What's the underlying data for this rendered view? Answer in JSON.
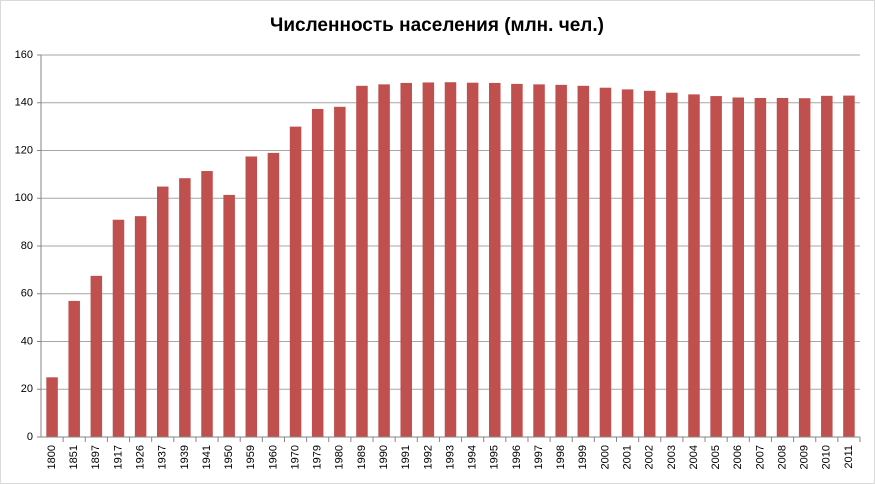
{
  "chart_data": {
    "type": "bar",
    "title": "Численность населения (млн. чел.)",
    "categories": [
      "1800",
      "1851",
      "1897",
      "1917",
      "1926",
      "1937",
      "1939",
      "1941",
      "1950",
      "1959",
      "1960",
      "1970",
      "1979",
      "1980",
      "1989",
      "1990",
      "1991",
      "1992",
      "1993",
      "1994",
      "1995",
      "1996",
      "1997",
      "1998",
      "1999",
      "2000",
      "2001",
      "2002",
      "2003",
      "2004",
      "2005",
      "2006",
      "2007",
      "2008",
      "2009",
      "2010",
      "2011"
    ],
    "values": [
      25,
      57,
      67.5,
      91,
      92.5,
      104.9,
      108.4,
      111.4,
      101.4,
      117.5,
      119,
      130,
      137.4,
      138.3,
      147.1,
      147.7,
      148.3,
      148.5,
      148.6,
      148.4,
      148.3,
      147.9,
      147.7,
      147.5,
      147.1,
      146.3,
      145.6,
      145,
      144.2,
      143.5,
      142.8,
      142.2,
      142,
      142,
      141.9,
      142.9,
      143
    ],
    "color": "#c0504d",
    "ylim": [
      0,
      160
    ],
    "yticks": [
      0,
      20,
      40,
      60,
      80,
      100,
      120,
      140,
      160
    ],
    "grid": true
  }
}
